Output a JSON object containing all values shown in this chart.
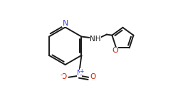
{
  "bg_color": "#ffffff",
  "line_color": "#1a1a1a",
  "nitrogen_color": "#4444cc",
  "oxygen_color": "#cc2200",
  "bond_lw": 1.4,
  "dbo": 0.018,
  "figsize": [
    2.51,
    1.52
  ],
  "dpi": 100,
  "xlim": [
    0.0,
    1.0
  ],
  "ylim": [
    0.0,
    1.0
  ]
}
